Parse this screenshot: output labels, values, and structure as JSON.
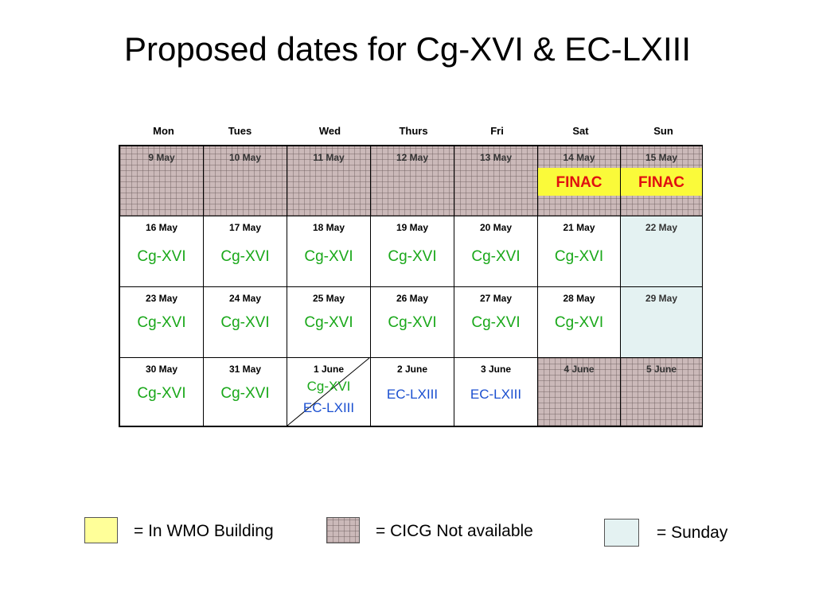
{
  "title": "Proposed dates for Cg-XVI & EC-LXIII",
  "days": [
    "Mon",
    "Tues",
    "Wed",
    "Thurs",
    "Fri",
    "Sat",
    "Sun"
  ],
  "weeks": [
    {
      "dates": [
        "9 May",
        "10 May",
        "11 May",
        "12 May",
        "13 May",
        "14 May",
        "15 May"
      ],
      "events": [
        "",
        "",
        "",
        "",
        "",
        "FINAC",
        "FINAC"
      ]
    },
    {
      "dates": [
        "16 May",
        "17 May",
        "18 May",
        "19 May",
        "20 May",
        "21 May",
        "22 May"
      ],
      "events": [
        "Cg-XVI",
        "Cg-XVI",
        "Cg-XVI",
        "Cg-XVI",
        "Cg-XVI",
        "Cg-XVI",
        ""
      ]
    },
    {
      "dates": [
        "23 May",
        "24 May",
        "25 May",
        "26 May",
        "27 May",
        "28 May",
        "29 May"
      ],
      "events": [
        "Cg-XVI",
        "Cg-XVI",
        "Cg-XVI",
        "Cg-XVI",
        "Cg-XVI",
        "Cg-XVI",
        ""
      ]
    },
    {
      "dates": [
        "30 May",
        "31 May",
        "1 June",
        "2 June",
        "3 June",
        "4 June",
        "5 June"
      ],
      "events": [
        "Cg-XVI",
        "Cg-XVI",
        "Cg-XVI",
        "EC-LXIII",
        "EC-LXIII",
        "",
        ""
      ],
      "events2": [
        "",
        "",
        "EC-LXIII",
        "",
        "",
        "",
        ""
      ]
    }
  ],
  "legend": {
    "wmo": "= In WMO Building",
    "cicg": "= CICG Not available",
    "sunday": "= Sunday"
  },
  "colors": {
    "cg": "#1aa81a",
    "ec": "#1a4fd0",
    "finac": "#e01010",
    "wmo_building": "#ffff99",
    "cicg_unavailable": "#cbb9b9",
    "sunday": "#e4f2f2"
  }
}
